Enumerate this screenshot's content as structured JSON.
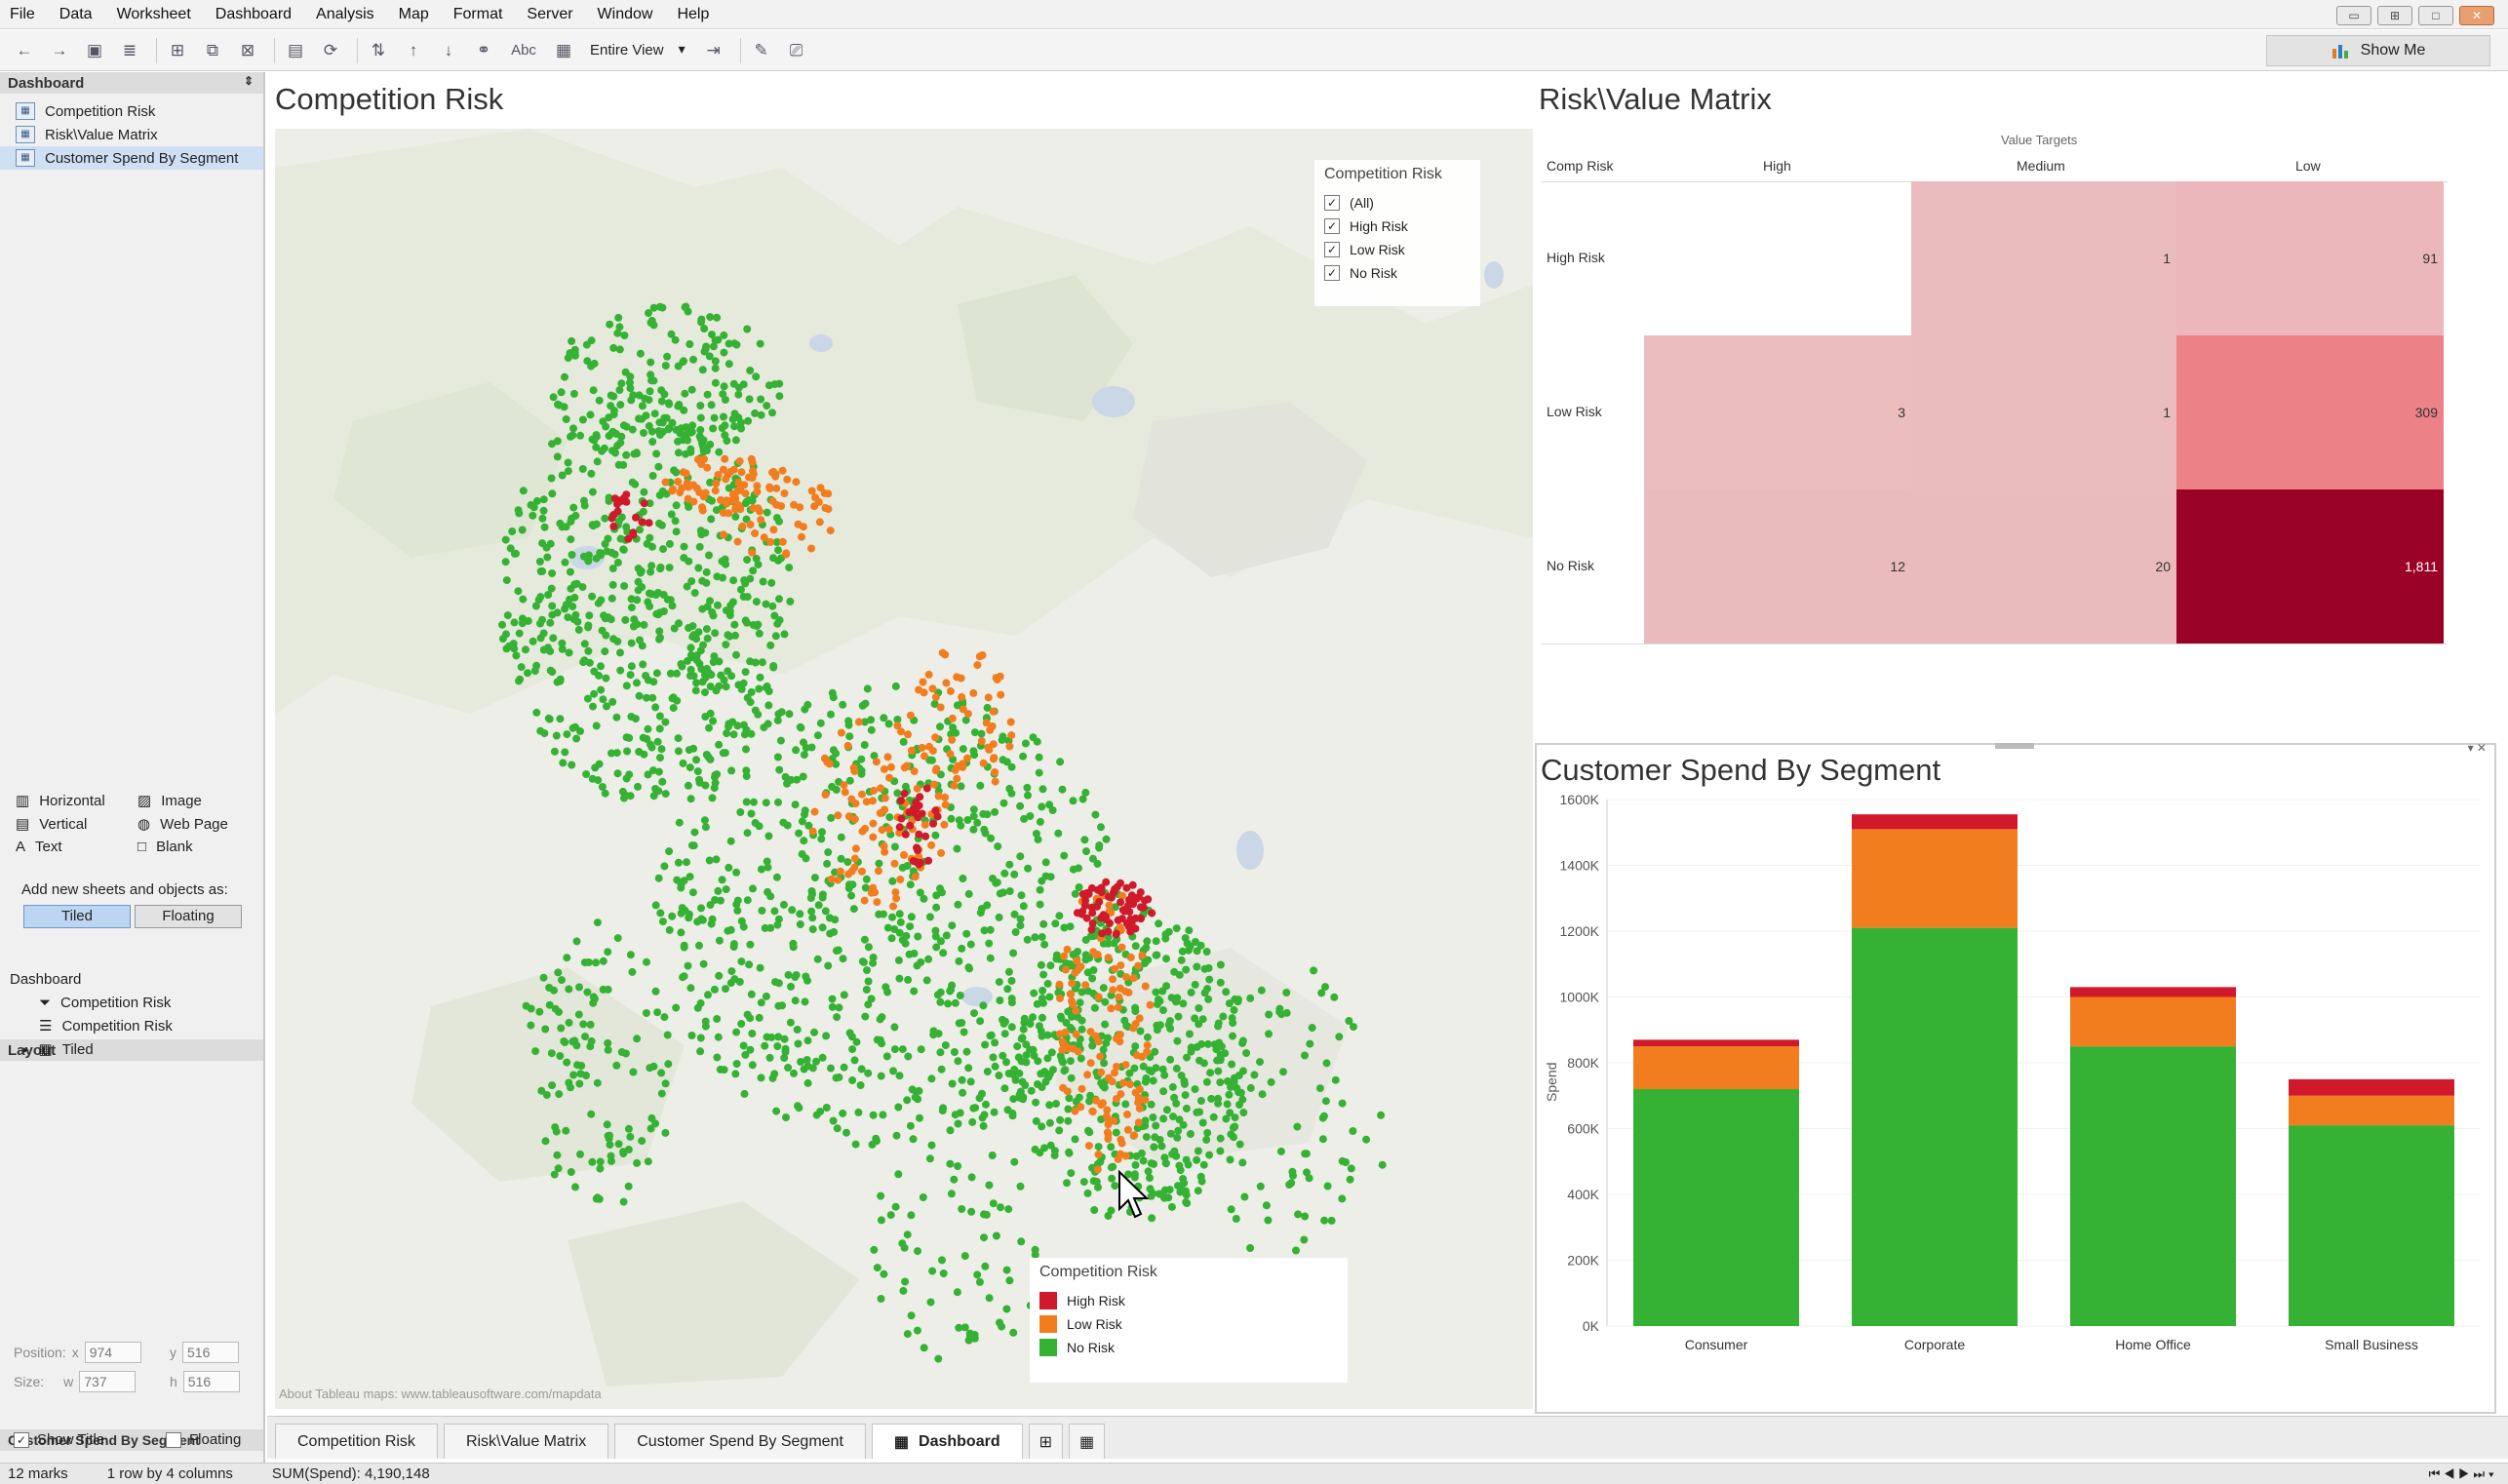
{
  "menu": [
    "File",
    "Data",
    "Worksheet",
    "Dashboard",
    "Analysis",
    "Map",
    "Format",
    "Server",
    "Window",
    "Help"
  ],
  "toolbar": {
    "view_select": "Entire View",
    "show_me": "Show Me",
    "text_tool": "Abc"
  },
  "dashboard_pane": {
    "title": "Dashboard",
    "sheets": [
      "Competition Risk",
      "Risk\\Value Matrix",
      "Customer Spend By Segment"
    ]
  },
  "objects": [
    "Horizontal",
    "Image",
    "Vertical",
    "Web Page",
    "Text",
    "Blank"
  ],
  "add_as": {
    "label": "Add new sheets and objects as:",
    "tiled": "Tiled",
    "floating": "Floating"
  },
  "layout": {
    "title": "Layout",
    "root": "Dashboard",
    "items": [
      "Competition Risk",
      "Competition Risk",
      "Tiled"
    ]
  },
  "selected": {
    "title": "Customer Spend By Segment",
    "position_label": "Position:",
    "x_label": "x",
    "x": "974",
    "y_label": "y",
    "y": "516",
    "size_label": "Size:",
    "w_label": "w",
    "w": "737",
    "h_label": "h",
    "h": "516",
    "show_title": "Show Title",
    "floating": "Floating"
  },
  "competition": {
    "title": "Competition Risk",
    "filter_title": "Competition Risk",
    "filter_items": [
      "(All)",
      "High Risk",
      "Low Risk",
      "No Risk"
    ],
    "legend_title": "Competition Risk",
    "legend": [
      {
        "label": "High Risk",
        "color": "#d0192a"
      },
      {
        "label": "Low Risk",
        "color": "#f27d1f"
      },
      {
        "label": "No Risk",
        "color": "#35b233"
      }
    ],
    "attribution": "About Tableau maps: www.tableausoftware.com/mapdata"
  },
  "matrix": {
    "title": "Risk\\Value Matrix",
    "col_group": "Value Targets",
    "row_header": "Comp Risk",
    "cols": [
      "High",
      "Medium",
      "Low"
    ],
    "rows": [
      "High Risk",
      "Low Risk",
      "No Risk"
    ],
    "cells": [
      [
        null,
        "1",
        "91"
      ],
      [
        "3",
        "1",
        "309"
      ],
      [
        "12",
        "20",
        "1,811"
      ]
    ],
    "colors": [
      [
        null,
        "#ebbcbe",
        "#ebb7ba"
      ],
      [
        "#ebbdbf",
        "#ebbcbe",
        "#ec8288"
      ],
      [
        "#eabbbd",
        "#eabbbd",
        "#9b0326"
      ]
    ]
  },
  "chart_data": {
    "type": "bar",
    "title": "Customer Spend By Segment",
    "ylabel": "Spend",
    "categories": [
      "Consumer",
      "Corporate",
      "Home Office",
      "Small Business"
    ],
    "series": [
      {
        "name": "No Risk",
        "color": "#35b233",
        "values": [
          720000,
          1210000,
          850000,
          610000
        ]
      },
      {
        "name": "Low Risk",
        "color": "#f27d1f",
        "values": [
          130000,
          300000,
          150000,
          90000
        ]
      },
      {
        "name": "High Risk",
        "color": "#d0192a",
        "values": [
          20000,
          45000,
          30000,
          50000
        ]
      }
    ],
    "ylim": [
      0,
      1600000
    ],
    "yticks": [
      "0K",
      "200K",
      "400K",
      "600K",
      "800K",
      "1000K",
      "1200K",
      "1400K",
      "1600K"
    ]
  },
  "tabs": [
    "Competition Risk",
    "Risk\\Value Matrix",
    "Customer Spend By Segment",
    "Dashboard"
  ],
  "status": {
    "marks": "12 marks",
    "dims": "1 row by 4 columns",
    "sum": "SUM(Spend): 4,190,148"
  }
}
